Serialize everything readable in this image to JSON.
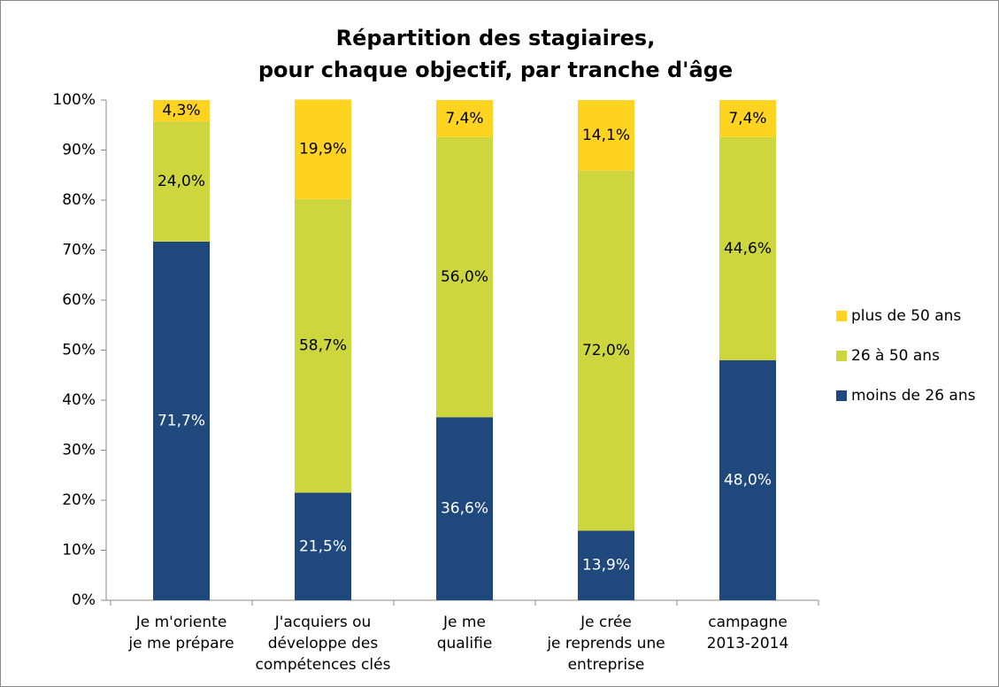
{
  "chart_data": {
    "type": "stacked_bar",
    "title": [
      "Répartition des stagiaires,",
      "pour chaque objectif, par tranche d'âge"
    ],
    "categories": [
      [
        "Je m'oriente",
        "je me prépare"
      ],
      [
        "J'acquiers ou",
        "développe des",
        "compétences clés"
      ],
      [
        "Je me",
        "qualifie"
      ],
      [
        "Je crée",
        "je reprends une",
        "entreprise"
      ],
      [
        "campagne",
        "2013-2014"
      ]
    ],
    "series": [
      {
        "name": "moins de 26 ans",
        "color": "#1f497d",
        "label_color": "#ffffff",
        "values": [
          71.7,
          21.5,
          36.6,
          13.9,
          48.0
        ],
        "value_labels": [
          "71,7%",
          "21,5%",
          "36,6%",
          "13,9%",
          "48,0%"
        ]
      },
      {
        "name": "26 à 50 ans",
        "color": "#cdd63c",
        "label_color": "#000000",
        "values": [
          24.0,
          58.7,
          56.0,
          72.0,
          44.6
        ],
        "value_labels": [
          "24,0%",
          "58,7%",
          "56,0%",
          "72,0%",
          "44,6%"
        ]
      },
      {
        "name": "plus de 50 ans",
        "color": "#ffd320",
        "label_color": "#000000",
        "values": [
          4.3,
          19.9,
          7.4,
          14.1,
          7.4
        ],
        "value_labels": [
          "4,3%",
          "19,9%",
          "7,4%",
          "14,1%",
          "7,4%"
        ]
      }
    ],
    "ylim": [
      0,
      100
    ],
    "yticks": [
      {
        "value": 0,
        "label": "0%"
      },
      {
        "value": 10,
        "label": "10%"
      },
      {
        "value": 20,
        "label": "20%"
      },
      {
        "value": 30,
        "label": "30%"
      },
      {
        "value": 40,
        "label": "40%"
      },
      {
        "value": 50,
        "label": "50%"
      },
      {
        "value": 60,
        "label": "60%"
      },
      {
        "value": 70,
        "label": "70%"
      },
      {
        "value": 80,
        "label": "80%"
      },
      {
        "value": 90,
        "label": "90%"
      },
      {
        "value": 100,
        "label": "100%"
      }
    ],
    "legend": "right"
  }
}
